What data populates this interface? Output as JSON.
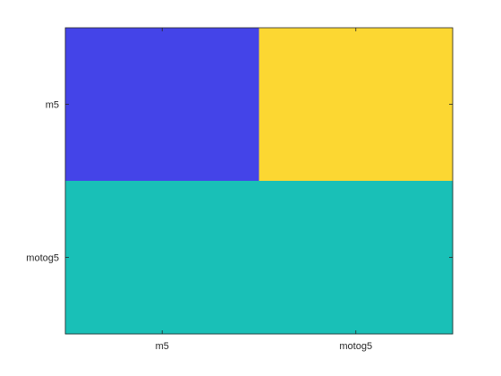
{
  "chart_data": {
    "type": "heatmap",
    "x_categories": [
      "m5",
      "motog5"
    ],
    "y_categories": [
      "m5",
      "motog5"
    ],
    "values": [
      [
        0,
        1
      ],
      [
        0.5,
        0.5
      ]
    ],
    "colormap": [
      "#4444e8",
      "#19c0b7",
      "#fcd732"
    ],
    "colorbar": false,
    "grid": false,
    "title": "",
    "xlabel": "",
    "ylabel": ""
  }
}
